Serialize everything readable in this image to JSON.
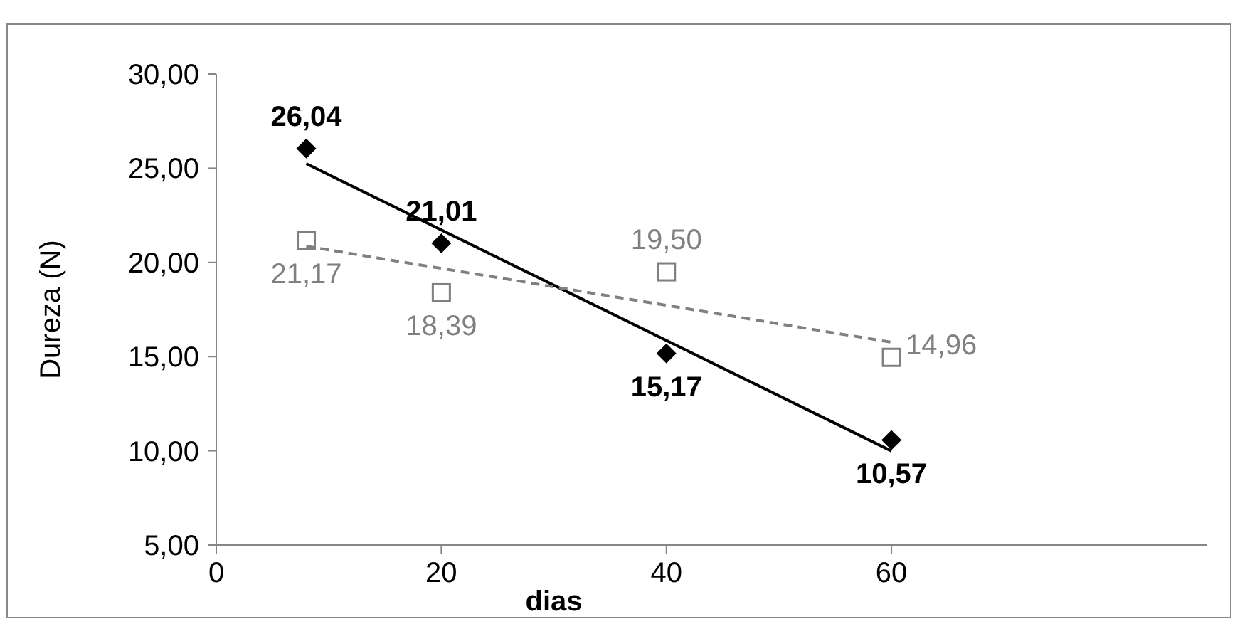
{
  "chart_data": {
    "type": "scatter",
    "xlabel": "dias",
    "ylabel": "Dureza (N)",
    "xlim": [
      0,
      88
    ],
    "xticks": [
      0,
      20,
      40,
      60
    ],
    "ylim": [
      5,
      30
    ],
    "yticks": [
      {
        "value": 5,
        "label": "5,00"
      },
      {
        "value": 10,
        "label": "10,00"
      },
      {
        "value": 15,
        "label": "15,00"
      },
      {
        "value": 20,
        "label": "20,00"
      },
      {
        "value": 25,
        "label": "25,00"
      },
      {
        "value": 30,
        "label": "30,00"
      }
    ],
    "grid": false,
    "series": [
      {
        "color": "#000000",
        "marker": "diamond",
        "x": [
          8,
          20,
          40,
          60
        ],
        "values": [
          26.04,
          21.01,
          15.17,
          10.57
        ],
        "value_labels": [
          "26,04",
          "21,01",
          "15,17",
          "10,57"
        ]
      },
      {
        "color": "#808080",
        "marker": "square",
        "x": [
          8,
          20,
          40,
          60
        ],
        "values": [
          21.17,
          18.39,
          19.5,
          14.96
        ],
        "value_labels": [
          "21,17",
          "18,39",
          "19,50",
          "14,96"
        ]
      },
      {
        "type": "line",
        "color": "#000000",
        "marker": "none",
        "line_style": "solid",
        "x": [
          8,
          60
        ],
        "values": [
          25.24,
          9.99
        ]
      },
      {
        "type": "line",
        "color": "#808080",
        "marker": "none",
        "line_style": "dashed",
        "x": [
          8,
          60
        ],
        "values": [
          20.86,
          15.76
        ]
      }
    ]
  }
}
